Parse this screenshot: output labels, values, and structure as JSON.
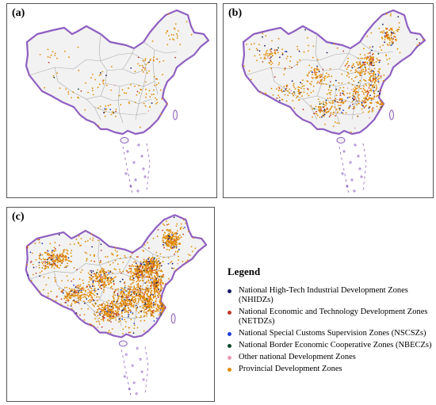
{
  "panels": [
    {
      "label": "(a)",
      "density": 170
    },
    {
      "label": "(b)",
      "density": 900
    },
    {
      "label": "(c)",
      "density": 2400
    }
  ],
  "legend": {
    "title": "Legend",
    "items": [
      {
        "label": "National High-Tech Industrial Development Zones (NHIDZs)",
        "color": "#1a1a66"
      },
      {
        "label": "National Economic and Technology Development Zones (NETDZs)",
        "color": "#c0392b"
      },
      {
        "label": "National Special Customs Supervision Zones (NSCSZs)",
        "color": "#1f3fd6"
      },
      {
        "label": "National Border Economic Cooperative Zones (NBECZs)",
        "color": "#0b4a2a"
      },
      {
        "label": "Other national Development Zones",
        "color": "#e89ab8"
      },
      {
        "label": "Provincial Development Zones",
        "color": "#e08a00"
      }
    ]
  },
  "colors": {
    "border": "#8e5fc1",
    "land": "#f2f2f2",
    "province_line": "#aaaaaa"
  }
}
